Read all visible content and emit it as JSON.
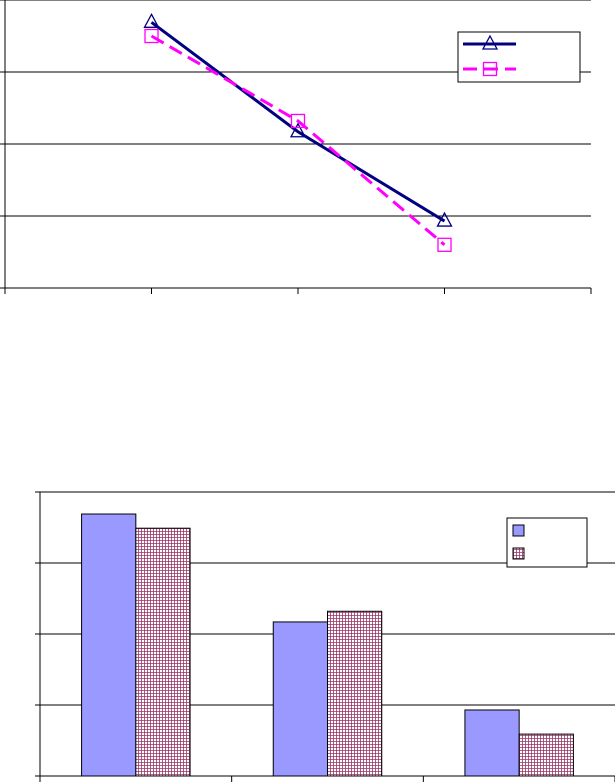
{
  "chart_data": [
    {
      "type": "line",
      "x": [
        1,
        2,
        3
      ],
      "xlim": [
        0,
        4
      ],
      "xticks": [
        0,
        1,
        2,
        3,
        4
      ],
      "ylim": [
        0,
        4
      ],
      "yticks": [
        0,
        1,
        2,
        3,
        4
      ],
      "grid": true,
      "legend": "top-right",
      "series": [
        {
          "color": "#000080",
          "marker": "triangle",
          "line_style": "solid",
          "values": [
            3.69,
            2.17,
            0.93
          ]
        },
        {
          "color": "#ff00ff",
          "marker": "square",
          "line_style": "dashed",
          "values": [
            3.5,
            2.32,
            0.6
          ]
        }
      ]
    },
    {
      "type": "bar",
      "categories": [
        null,
        null,
        null
      ],
      "ylim": [
        0,
        4
      ],
      "yticks": [
        0,
        1,
        2,
        3,
        4
      ],
      "grid": true,
      "legend": "top-right",
      "series": [
        {
          "color": "#9999ff",
          "pattern": "solid",
          "values": [
            3.69,
            2.17,
            0.93
          ]
        },
        {
          "color": "#993366",
          "pattern": "crosshatch",
          "values": [
            3.49,
            2.32,
            0.59
          ]
        }
      ]
    }
  ]
}
